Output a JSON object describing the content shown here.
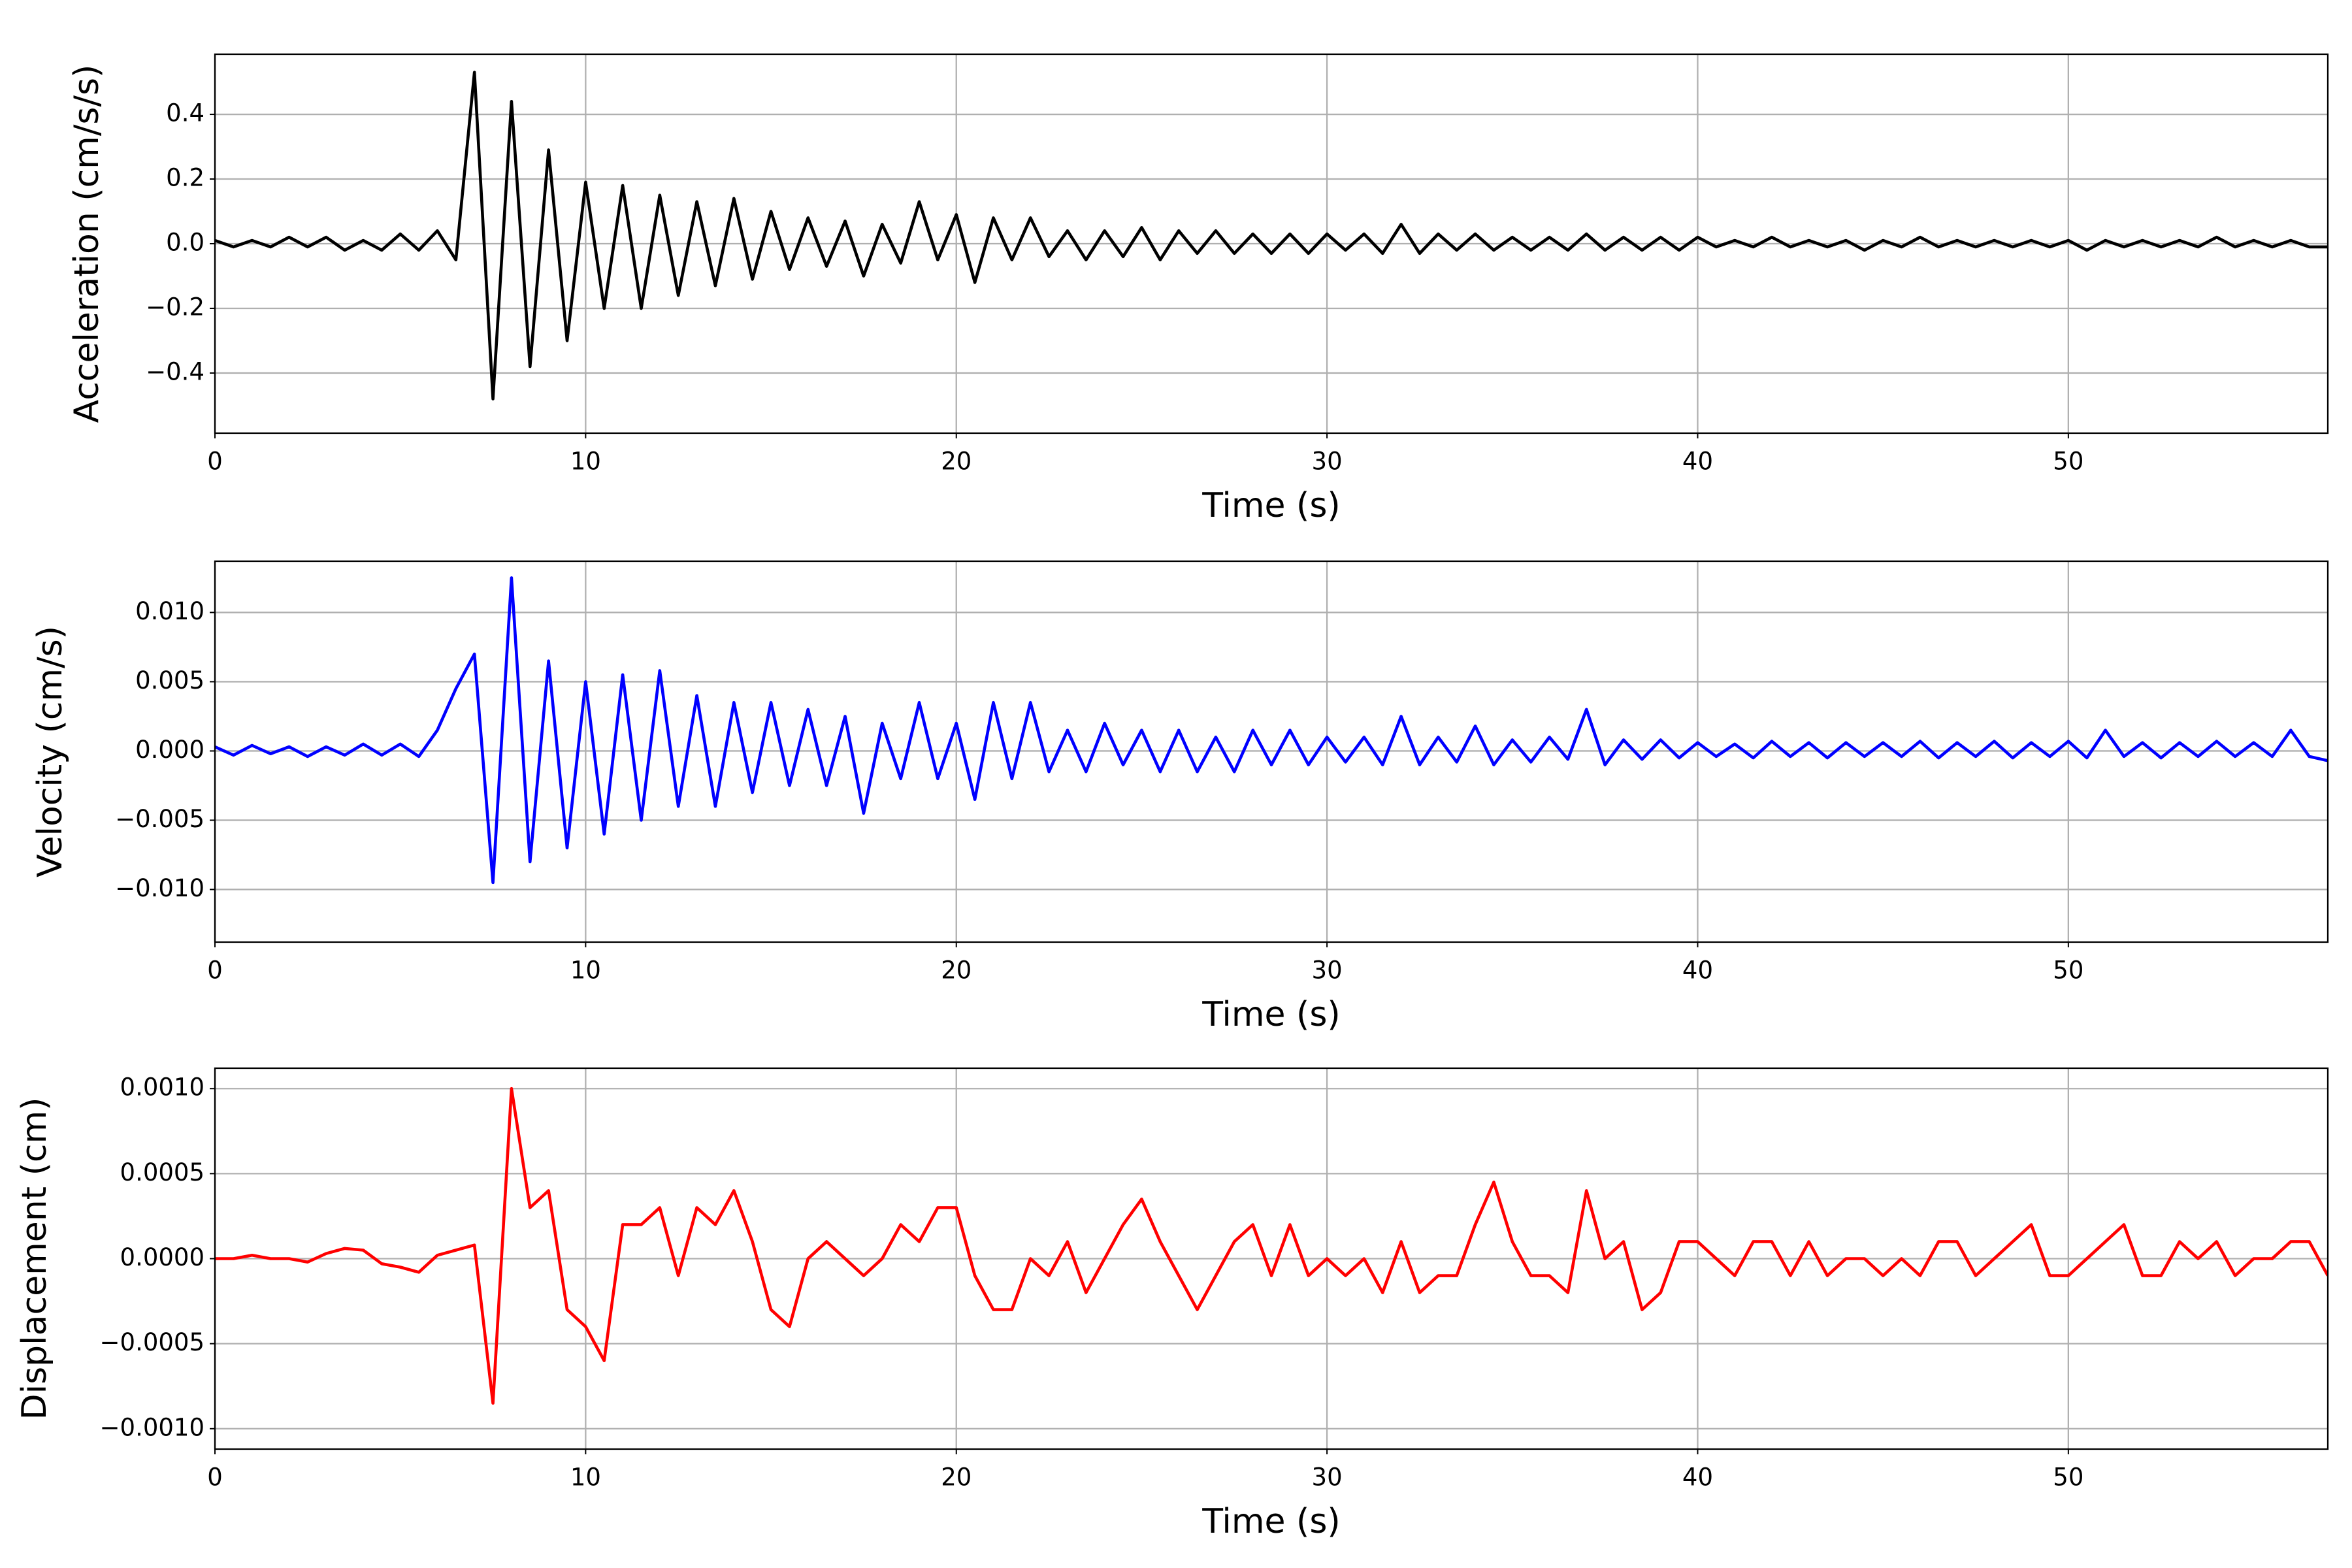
{
  "chart_data": [
    {
      "type": "line",
      "xlabel": "Time (s)",
      "ylabel": "Acceleration (cm/s/s)",
      "color": "#000000",
      "grid": true,
      "xlim": [
        0,
        57
      ],
      "xticks": [
        0,
        10,
        20,
        30,
        40,
        50
      ],
      "ylim": [
        -0.586,
        0.586
      ],
      "yticks": [
        {
          "value": -0.4,
          "label": "−0.4"
        },
        {
          "value": -0.2,
          "label": "−0.2"
        },
        {
          "value": 0,
          "label": "0.0"
        },
        0.2,
        0.4
      ],
      "x": [
        0,
        0.5,
        1,
        1.5,
        2,
        2.5,
        3,
        3.5,
        4,
        4.5,
        5,
        5.5,
        6,
        6.5,
        7,
        7.5,
        8,
        8.5,
        9,
        9.5,
        10,
        10.5,
        11,
        11.5,
        12,
        12.5,
        13,
        13.5,
        14,
        14.5,
        15,
        15.5,
        16,
        16.5,
        17,
        17.5,
        18,
        18.5,
        19,
        19.5,
        20,
        20.5,
        21,
        21.5,
        22,
        22.5,
        23,
        23.5,
        24,
        24.5,
        25,
        25.5,
        26,
        26.5,
        27,
        27.5,
        28,
        28.5,
        29,
        29.5,
        30,
        30.5,
        31,
        31.5,
        32,
        32.5,
        33,
        33.5,
        34,
        34.5,
        35,
        35.5,
        36,
        36.5,
        37,
        37.5,
        38,
        38.5,
        39,
        39.5,
        40,
        40.5,
        41,
        41.5,
        42,
        42.5,
        43,
        43.5,
        44,
        44.5,
        45,
        45.5,
        46,
        46.5,
        47,
        47.5,
        48,
        48.5,
        49,
        49.5,
        50,
        50.5,
        51,
        51.5,
        52,
        52.5,
        53,
        53.5,
        54,
        54.5,
        55,
        55.5,
        56,
        56.5,
        57
      ],
      "values": [
        0.01,
        -0.01,
        0.01,
        -0.01,
        0.02,
        -0.01,
        0.02,
        -0.02,
        0.01,
        -0.02,
        0.03,
        -0.02,
        0.04,
        -0.05,
        0.53,
        -0.48,
        0.44,
        -0.38,
        0.29,
        -0.3,
        0.19,
        -0.2,
        0.18,
        -0.2,
        0.15,
        -0.16,
        0.13,
        -0.13,
        0.14,
        -0.11,
        0.1,
        -0.08,
        0.08,
        -0.07,
        0.07,
        -0.1,
        0.06,
        -0.06,
        0.13,
        -0.05,
        0.09,
        -0.12,
        0.08,
        -0.05,
        0.08,
        -0.04,
        0.04,
        -0.05,
        0.04,
        -0.04,
        0.05,
        -0.05,
        0.04,
        -0.03,
        0.04,
        -0.03,
        0.03,
        -0.03,
        0.03,
        -0.03,
        0.03,
        -0.02,
        0.03,
        -0.03,
        0.06,
        -0.03,
        0.03,
        -0.02,
        0.03,
        -0.02,
        0.02,
        -0.02,
        0.02,
        -0.02,
        0.03,
        -0.02,
        0.02,
        -0.02,
        0.02,
        -0.02,
        0.02,
        -0.01,
        0.01,
        -0.01,
        0.02,
        -0.01,
        0.01,
        -0.01,
        0.01,
        -0.02,
        0.01,
        -0.01,
        0.02,
        -0.01,
        0.01,
        -0.01,
        0.01,
        -0.01,
        0.01,
        -0.01,
        0.01,
        -0.02,
        0.01,
        -0.01,
        0.01,
        -0.01,
        0.01,
        -0.01,
        0.02,
        -0.01,
        0.01,
        -0.01,
        0.01,
        -0.01,
        -0.01
      ]
    },
    {
      "type": "line",
      "xlabel": "Time (s)",
      "ylabel": "Velocity (cm/s)",
      "color": "#0000ff",
      "grid": true,
      "xlim": [
        0,
        57
      ],
      "xticks": [
        0,
        10,
        20,
        30,
        40,
        50
      ],
      "ylim": [
        -0.0138,
        0.0137
      ],
      "yticks": [
        {
          "value": -0.01,
          "label": "−0.010"
        },
        {
          "value": -0.005,
          "label": "−0.005"
        },
        {
          "value": 0,
          "label": "0.000"
        },
        {
          "value": 0.005,
          "label": "0.005"
        },
        {
          "value": 0.01,
          "label": "0.010"
        }
      ],
      "x": [
        0,
        0.5,
        1,
        1.5,
        2,
        2.5,
        3,
        3.5,
        4,
        4.5,
        5,
        5.5,
        6,
        6.5,
        7,
        7.5,
        8,
        8.5,
        9,
        9.5,
        10,
        10.5,
        11,
        11.5,
        12,
        12.5,
        13,
        13.5,
        14,
        14.5,
        15,
        15.5,
        16,
        16.5,
        17,
        17.5,
        18,
        18.5,
        19,
        19.5,
        20,
        20.5,
        21,
        21.5,
        22,
        22.5,
        23,
        23.5,
        24,
        24.5,
        25,
        25.5,
        26,
        26.5,
        27,
        27.5,
        28,
        28.5,
        29,
        29.5,
        30,
        30.5,
        31,
        31.5,
        32,
        32.5,
        33,
        33.5,
        34,
        34.5,
        35,
        35.5,
        36,
        36.5,
        37,
        37.5,
        38,
        38.5,
        39,
        39.5,
        40,
        40.5,
        41,
        41.5,
        42,
        42.5,
        43,
        43.5,
        44,
        44.5,
        45,
        45.5,
        46,
        46.5,
        47,
        47.5,
        48,
        48.5,
        49,
        49.5,
        50,
        50.5,
        51,
        51.5,
        52,
        52.5,
        53,
        53.5,
        54,
        54.5,
        55,
        55.5,
        56,
        56.5,
        57
      ],
      "values": [
        0.0003,
        -0.0003,
        0.0004,
        -0.0002,
        0.0003,
        -0.0004,
        0.0003,
        -0.0003,
        0.0005,
        -0.0003,
        0.0005,
        -0.0004,
        0.0015,
        0.0045,
        0.007,
        -0.0095,
        0.0125,
        -0.008,
        0.0065,
        -0.007,
        0.005,
        -0.006,
        0.0055,
        -0.005,
        0.0058,
        -0.004,
        0.004,
        -0.004,
        0.0035,
        -0.003,
        0.0035,
        -0.0025,
        0.003,
        -0.0025,
        0.0025,
        -0.0045,
        0.002,
        -0.002,
        0.0035,
        -0.002,
        0.002,
        -0.0035,
        0.0035,
        -0.002,
        0.0035,
        -0.0015,
        0.0015,
        -0.0015,
        0.002,
        -0.001,
        0.0015,
        -0.0015,
        0.0015,
        -0.0015,
        0.001,
        -0.0015,
        0.0015,
        -0.001,
        0.0015,
        -0.001,
        0.001,
        -0.0008,
        0.001,
        -0.001,
        0.0025,
        -0.001,
        0.001,
        -0.0008,
        0.0018,
        -0.001,
        0.0008,
        -0.0008,
        0.001,
        -0.0006,
        0.003,
        -0.001,
        0.0008,
        -0.0006,
        0.0008,
        -0.0005,
        0.0006,
        -0.0004,
        0.0005,
        -0.0005,
        0.0007,
        -0.0004,
        0.0006,
        -0.0005,
        0.0006,
        -0.0004,
        0.0006,
        -0.0004,
        0.0007,
        -0.0005,
        0.0006,
        -0.0004,
        0.0007,
        -0.0005,
        0.0006,
        -0.0004,
        0.0007,
        -0.0005,
        0.0015,
        -0.0004,
        0.0006,
        -0.0005,
        0.0006,
        -0.0004,
        0.0007,
        -0.0004,
        0.0006,
        -0.0004,
        0.0015,
        -0.0004,
        -0.0007
      ]
    },
    {
      "type": "line",
      "xlabel": "Time (s)",
      "ylabel": "Displacement (cm)",
      "color": "#ff0000",
      "grid": true,
      "xlim": [
        0,
        57
      ],
      "xticks": [
        0,
        10,
        20,
        30,
        40,
        50
      ],
      "ylim": [
        -0.00112,
        0.00112
      ],
      "yticks": [
        {
          "value": -0.001,
          "label": "−0.0010"
        },
        {
          "value": -0.0005,
          "label": "−0.0005"
        },
        {
          "value": 0,
          "label": "0.0000"
        },
        {
          "value": 0.0005,
          "label": "0.0005"
        },
        {
          "value": 0.001,
          "label": "0.0010"
        }
      ],
      "x": [
        0,
        0.5,
        1,
        1.5,
        2,
        2.5,
        3,
        3.5,
        4,
        4.5,
        5,
        5.5,
        6,
        6.5,
        7,
        7.5,
        8,
        8.5,
        9,
        9.5,
        10,
        10.5,
        11,
        11.5,
        12,
        12.5,
        13,
        13.5,
        14,
        14.5,
        15,
        15.5,
        16,
        16.5,
        17,
        17.5,
        18,
        18.5,
        19,
        19.5,
        20,
        20.5,
        21,
        21.5,
        22,
        22.5,
        23,
        23.5,
        24,
        24.5,
        25,
        25.5,
        26,
        26.5,
        27,
        27.5,
        28,
        28.5,
        29,
        29.5,
        30,
        30.5,
        31,
        31.5,
        32,
        32.5,
        33,
        33.5,
        34,
        34.5,
        35,
        35.5,
        36,
        36.5,
        37,
        37.5,
        38,
        38.5,
        39,
        39.5,
        40,
        40.5,
        41,
        41.5,
        42,
        42.5,
        43,
        43.5,
        44,
        44.5,
        45,
        45.5,
        46,
        46.5,
        47,
        47.5,
        48,
        48.5,
        49,
        49.5,
        50,
        50.5,
        51,
        51.5,
        52,
        52.5,
        53,
        53.5,
        54,
        54.5,
        55,
        55.5,
        56,
        56.5,
        57
      ],
      "values": [
        0,
        0,
        2e-05,
        0,
        0,
        -2e-05,
        3e-05,
        6e-05,
        5e-05,
        -3e-05,
        -5e-05,
        -8e-05,
        2e-05,
        5e-05,
        8e-05,
        -0.00085,
        0.001,
        0.0003,
        0.0004,
        -0.0003,
        -0.0004,
        -0.0006,
        0.0002,
        0.0002,
        0.0003,
        -0.0001,
        0.0003,
        0.0002,
        0.0004,
        0.0001,
        -0.0003,
        -0.0004,
        0,
        0.0001,
        0,
        -0.0001,
        0,
        0.0002,
        0.0001,
        0.0003,
        0.0003,
        -0.0001,
        -0.0003,
        -0.0003,
        0,
        -0.0001,
        0.0001,
        -0.0002,
        0,
        0.0002,
        0.00035,
        0.0001,
        -0.0001,
        -0.0003,
        -0.0001,
        0.0001,
        0.0002,
        -0.0001,
        0.0002,
        -0.0001,
        0,
        -0.0001,
        0,
        -0.0002,
        0.0001,
        -0.0002,
        -0.0001,
        -0.0001,
        0.0002,
        0.00045,
        0.0001,
        -0.0001,
        -0.0001,
        -0.0002,
        0.0004,
        0,
        0.0001,
        -0.0003,
        -0.0002,
        0.0001,
        0.0001,
        0,
        -0.0001,
        0.0001,
        0.0001,
        -0.0001,
        0.0001,
        -0.0001,
        0,
        0,
        -0.0001,
        0,
        -0.0001,
        0.0001,
        0.0001,
        -0.0001,
        0,
        0.0001,
        0.0002,
        -0.0001,
        -0.0001,
        0,
        0.0001,
        0.0002,
        -0.0001,
        -0.0001,
        0.0001,
        0,
        0.0001,
        -0.0001,
        0,
        0,
        0.0001,
        0.0001,
        -0.0001
      ]
    }
  ]
}
